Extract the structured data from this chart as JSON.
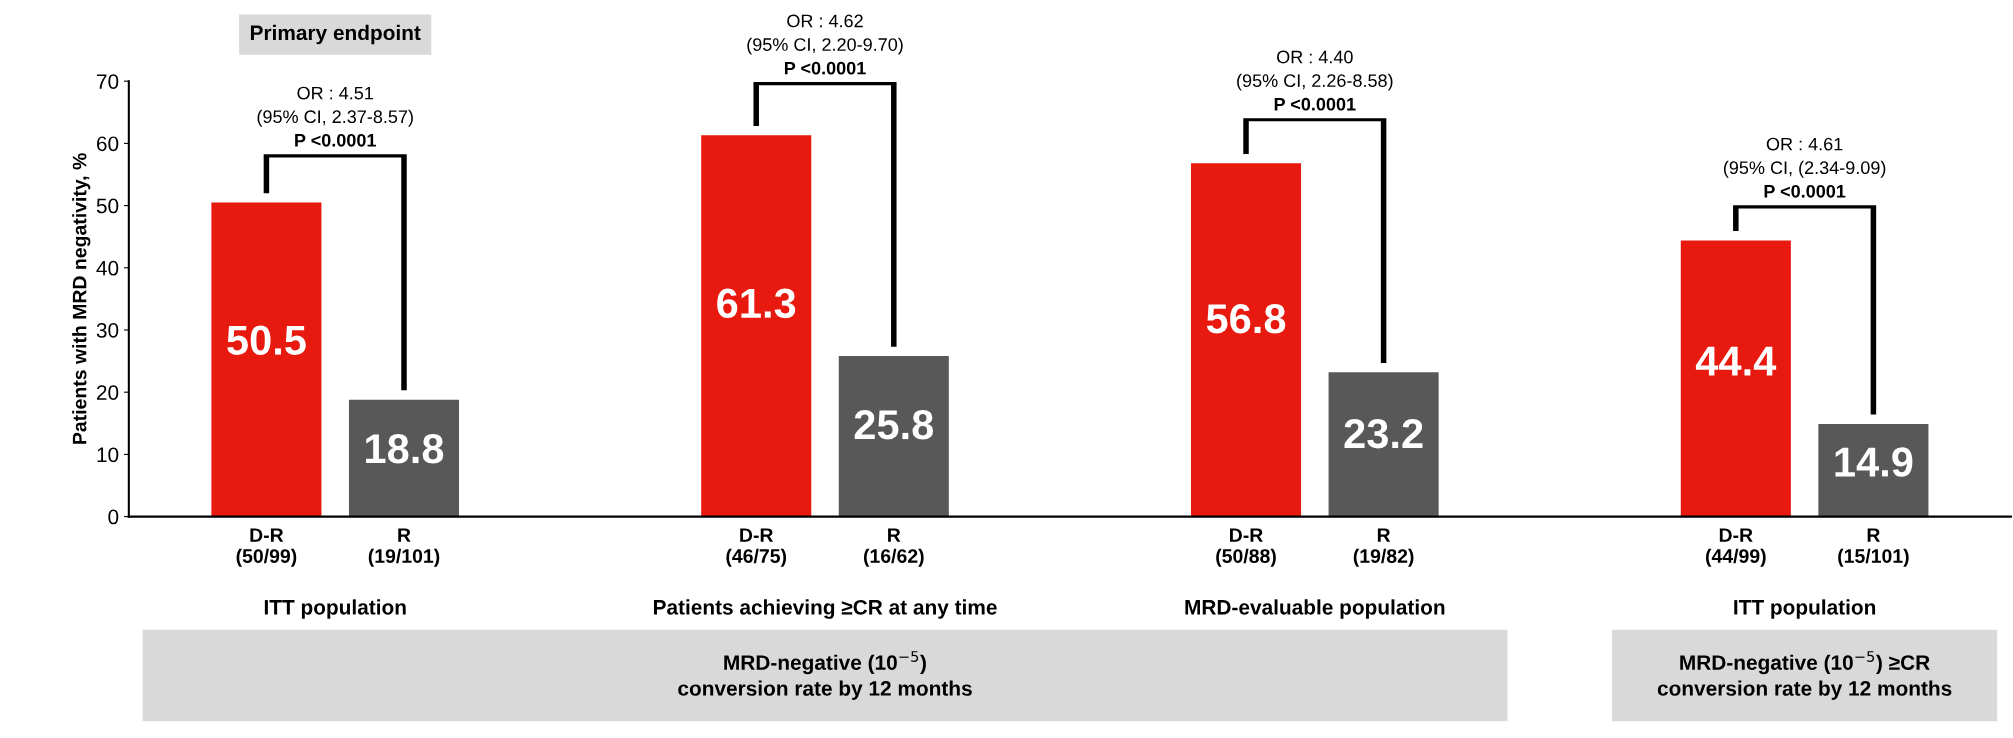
{
  "chart_data": {
    "type": "bar",
    "ylabel": "Patients with MRD negativity, %",
    "categories": [
      "D-R\n(50/99)",
      "R\n(19/101)",
      "D-R\n(46/75)",
      "R\n(16/62)",
      "D-R\n(50/88)",
      "R\n(19/82)",
      "D-R\n(44/99)",
      "R\n(15/101)"
    ],
    "values": [
      50.5,
      18.8,
      61.3,
      25.8,
      56.8,
      23.2,
      44.4,
      14.9
    ],
    "colors": [
      "#e8190f",
      "#585858",
      "#e8190f",
      "#585858",
      "#e8190f",
      "#585858",
      "#e8190f",
      "#585858"
    ],
    "ylim": [
      0,
      70
    ],
    "yticks": [
      0,
      10,
      20,
      30,
      40,
      50,
      60,
      70
    ],
    "grid": false,
    "data_labels": true,
    "annotations": [
      "Primary endpoint",
      "OR : 4.51\n(95% CI, 2.37-8.57)\nP <0.0001",
      "OR : 4.62\n(95% CI, 2.20-9.70)\nP <0.0001",
      "OR : 4.40\n(95% CI, 2.26-8.58)\nP <0.0001",
      "OR : 4.61\n(95% CI, (2.34-9.09)\nP <0.0001",
      "ITT population",
      "Patients achieving ≥CR at any time",
      "MRD-evaluable population",
      "ITT population",
      "MRD-negative (10$^{−5}$)\nconversion rate by 12 months",
      "MRD-negative (10$^{−5}$) ≥CR\nconversion rate by 12 months"
    ]
  }
}
